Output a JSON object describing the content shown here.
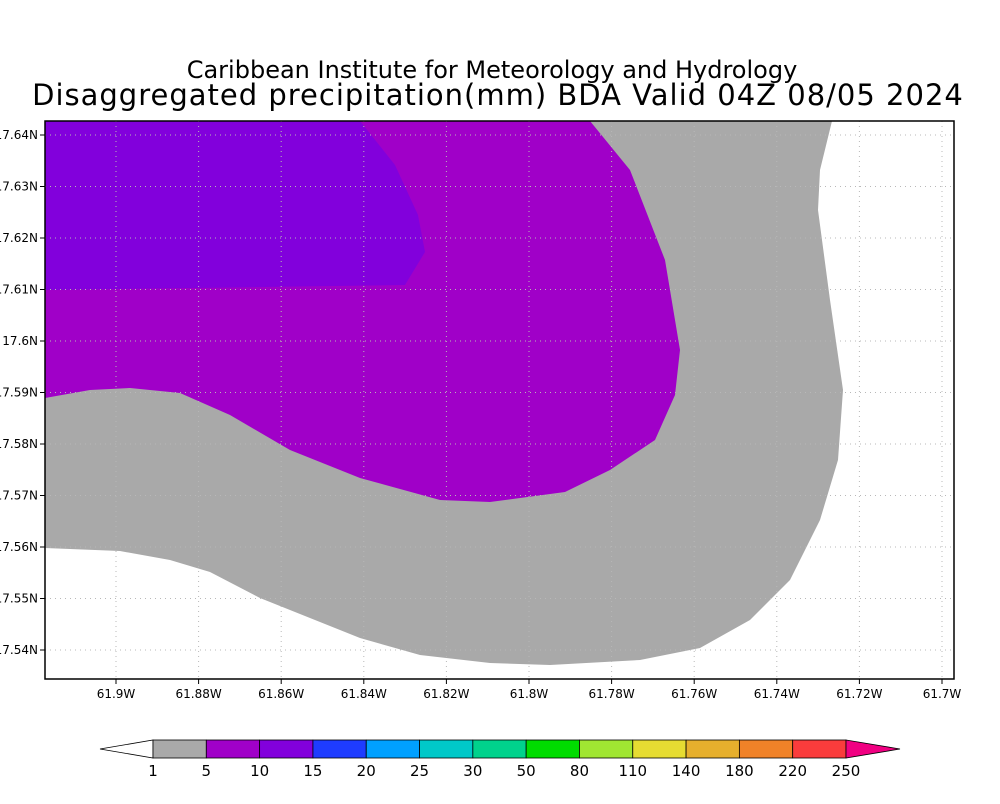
{
  "header": {
    "line1": "Caribbean Institute for Meteorology and Hydrology",
    "line2": "Disaggregated precipitation(mm) BDA Valid 04Z 08/05 2024"
  },
  "map": {
    "x_labels": [
      "61.9W",
      "61.88W",
      "61.86W",
      "61.84W",
      "61.82W",
      "61.8W",
      "61.78W",
      "61.76W",
      "61.74W",
      "61.72W",
      "61.7W"
    ],
    "y_labels": [
      "17.64N",
      "17.63N",
      "17.62N",
      "17.61N",
      "17.6N",
      "17.59N",
      "17.58N",
      "17.57N",
      "17.56N",
      "17.55N",
      "17.54N"
    ]
  },
  "colorbar": {
    "levels": [
      1,
      5,
      10,
      15,
      20,
      25,
      30,
      50,
      80,
      110,
      140,
      180,
      220,
      250
    ],
    "colors": [
      "#a9a9a9",
      "#a000c8",
      "#8200dc",
      "#1e3cff",
      "#00a0ff",
      "#00c8c8",
      "#00d28c",
      "#00dc00",
      "#a0e632",
      "#e6dc32",
      "#e6af2d",
      "#f08228",
      "#fa3c3c",
      "#f00082"
    ]
  }
}
